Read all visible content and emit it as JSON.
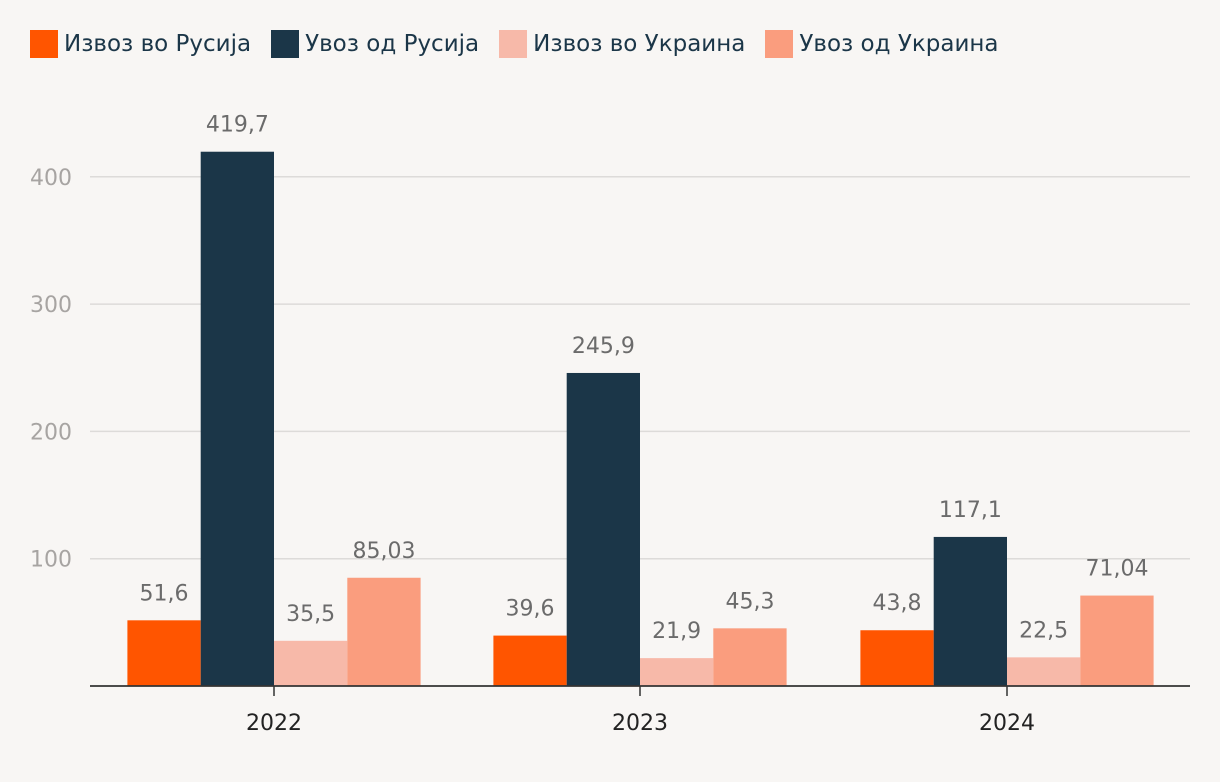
{
  "chart_data": {
    "type": "bar",
    "title": "",
    "xlabel": "",
    "ylabel": "",
    "ylim": [
      0,
      420
    ],
    "yticks": [
      100,
      200,
      300,
      400
    ],
    "grid": true,
    "legend_position": "top-left",
    "categories": [
      "2022",
      "2023",
      "2024"
    ],
    "series": [
      {
        "name": "Извоз во Русија",
        "color": "#ff5500",
        "values": [
          51.6,
          39.6,
          43.8
        ],
        "labels": [
          "51,6",
          "39,6",
          "43,8"
        ]
      },
      {
        "name": "Увоз од Русија",
        "color": "#1b3648",
        "values": [
          419.7,
          245.9,
          117.1
        ],
        "labels": [
          "419,7",
          "245,9",
          "117,1"
        ]
      },
      {
        "name": "Извоз во Украина",
        "color": "#f7b9a9",
        "values": [
          35.5,
          21.9,
          22.5
        ],
        "labels": [
          "35,5",
          "21,9",
          "22,5"
        ]
      },
      {
        "name": "Увоз од Украина",
        "color": "#fa9d7e",
        "values": [
          85.03,
          45.3,
          71.04
        ],
        "labels": [
          "85,03",
          "45,3",
          "71,04"
        ]
      }
    ]
  }
}
